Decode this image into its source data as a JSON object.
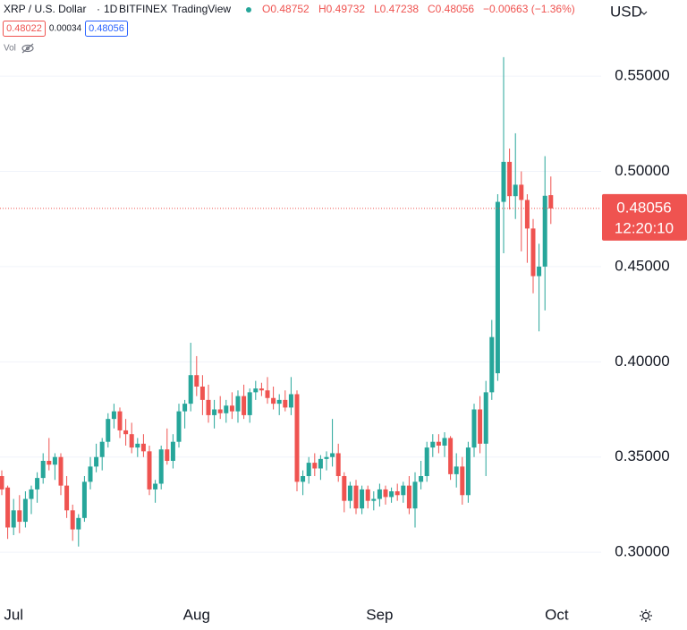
{
  "header": {
    "symbol": "XRP / U.S. Dollar",
    "interval": "1D",
    "exchange": "BITFINEX",
    "source": "TradingView",
    "ohlc": [
      "O0.48752",
      "H0.49732",
      "L0.47238",
      "C0.48056",
      "−0.00663 (−1.36%)"
    ],
    "bid": "0.48022",
    "spread": "0.00034",
    "ask": "0.48056",
    "volume_label": "Vol"
  },
  "chart_data": {
    "type": "candlestick",
    "currency": "USD",
    "categories": [
      null,
      null,
      "Jul",
      null,
      null,
      null,
      null,
      null,
      null,
      null,
      null,
      null,
      null,
      null,
      null,
      null,
      null,
      null,
      null,
      null,
      null,
      null,
      null,
      null,
      null,
      null,
      null,
      null,
      null,
      null,
      null,
      null,
      null,
      "Aug",
      null,
      null,
      null,
      null,
      null,
      null,
      null,
      null,
      null,
      null,
      null,
      null,
      null,
      null,
      null,
      null,
      null,
      null,
      null,
      null,
      null,
      null,
      null,
      null,
      null,
      null,
      null,
      null,
      null,
      null,
      "Sep",
      null,
      null,
      null,
      null,
      null,
      null,
      null,
      null,
      null,
      null,
      null,
      null,
      null,
      null,
      null,
      null,
      null,
      null,
      null,
      null,
      null,
      null,
      null,
      null,
      null,
      null,
      null,
      null,
      null,
      "Oct"
    ],
    "open": [
      0.34,
      0.334,
      0.313,
      0.322,
      0.316,
      0.328,
      0.333,
      0.339,
      0.348,
      0.346,
      0.35,
      0.335,
      0.322,
      0.312,
      0.318,
      0.337,
      0.345,
      0.35,
      0.358,
      0.37,
      0.374,
      0.364,
      0.362,
      0.355,
      0.357,
      0.353,
      0.333,
      0.336,
      0.354,
      0.348,
      0.358,
      0.374,
      0.378,
      0.393,
      0.387,
      0.38,
      0.372,
      0.375,
      0.373,
      0.377,
      0.374,
      0.382,
      0.372,
      0.384,
      0.386,
      0.385,
      0.381,
      0.378,
      0.38,
      0.376,
      0.383,
      0.337,
      0.34,
      0.347,
      0.344,
      0.349,
      0.35,
      0.352,
      0.34,
      0.327,
      0.335,
      0.323,
      0.333,
      0.327,
      0.328,
      0.333,
      0.329,
      0.332,
      0.33,
      0.335,
      0.323,
      0.337,
      0.34,
      0.355,
      0.358,
      0.356,
      0.36,
      0.341,
      0.345,
      0.33,
      0.355,
      0.375,
      0.357,
      0.384,
      0.394,
      0.484,
      0.505,
      0.487,
      0.493,
      0.485,
      0.47,
      0.445,
      0.45,
      0.48752,
      null
    ],
    "high": [
      0.343,
      0.335,
      0.328,
      0.33,
      0.332,
      0.335,
      0.342,
      0.352,
      0.36,
      0.352,
      0.352,
      0.34,
      0.325,
      0.32,
      0.34,
      0.35,
      0.357,
      0.36,
      0.373,
      0.378,
      0.376,
      0.37,
      0.368,
      0.36,
      0.362,
      0.356,
      0.338,
      0.356,
      0.365,
      0.362,
      0.378,
      0.38,
      0.41,
      0.403,
      0.393,
      0.388,
      0.38,
      0.382,
      0.38,
      0.384,
      0.385,
      0.388,
      0.386,
      0.39,
      0.389,
      0.392,
      0.387,
      0.383,
      0.385,
      0.392,
      0.385,
      0.343,
      0.35,
      0.352,
      0.351,
      0.353,
      0.37,
      0.357,
      0.342,
      0.337,
      0.338,
      0.335,
      0.335,
      0.332,
      0.336,
      0.335,
      0.334,
      0.336,
      0.337,
      0.34,
      0.342,
      0.348,
      0.358,
      0.362,
      0.362,
      0.363,
      0.361,
      0.352,
      0.35,
      0.358,
      0.378,
      0.382,
      0.39,
      0.422,
      0.488,
      0.56,
      0.512,
      0.52,
      0.5,
      0.488,
      0.475,
      0.462,
      0.508,
      0.49732,
      null
    ],
    "low": [
      0.33,
      0.307,
      0.309,
      0.31,
      0.313,
      0.32,
      0.326,
      0.336,
      0.343,
      0.338,
      0.33,
      0.318,
      0.306,
      0.303,
      0.316,
      0.333,
      0.342,
      0.343,
      0.355,
      0.365,
      0.36,
      0.356,
      0.352,
      0.35,
      0.35,
      0.33,
      0.326,
      0.333,
      0.346,
      0.344,
      0.355,
      0.365,
      0.374,
      0.382,
      0.372,
      0.368,
      0.365,
      0.37,
      0.368,
      0.37,
      0.368,
      0.37,
      0.368,
      0.38,
      0.382,
      0.378,
      0.375,
      0.372,
      0.374,
      0.372,
      0.332,
      0.33,
      0.336,
      0.34,
      0.338,
      0.343,
      0.345,
      0.337,
      0.321,
      0.323,
      0.32,
      0.32,
      0.323,
      0.322,
      0.324,
      0.325,
      0.326,
      0.327,
      0.326,
      0.32,
      0.313,
      0.333,
      0.337,
      0.35,
      0.352,
      0.35,
      0.338,
      0.334,
      0.325,
      0.326,
      0.35,
      0.352,
      0.34,
      0.38,
      0.39,
      0.457,
      0.48,
      0.475,
      0.458,
      0.452,
      0.436,
      0.416,
      0.427,
      0.47238,
      null
    ],
    "close": [
      0.333,
      0.313,
      0.322,
      0.316,
      0.328,
      0.333,
      0.339,
      0.348,
      0.346,
      0.35,
      0.335,
      0.322,
      0.312,
      0.318,
      0.337,
      0.345,
      0.35,
      0.358,
      0.37,
      0.374,
      0.364,
      0.362,
      0.355,
      0.357,
      0.353,
      0.333,
      0.336,
      0.354,
      0.348,
      0.358,
      0.374,
      0.378,
      0.393,
      0.387,
      0.38,
      0.372,
      0.375,
      0.373,
      0.377,
      0.374,
      0.382,
      0.372,
      0.384,
      0.386,
      0.385,
      0.381,
      0.378,
      0.38,
      0.376,
      0.383,
      0.337,
      0.34,
      0.347,
      0.344,
      0.349,
      0.35,
      0.352,
      0.34,
      0.327,
      0.335,
      0.323,
      0.333,
      0.327,
      0.328,
      0.333,
      0.329,
      0.332,
      0.33,
      0.335,
      0.323,
      0.337,
      0.34,
      0.355,
      0.358,
      0.356,
      0.36,
      0.341,
      0.345,
      0.33,
      0.355,
      0.375,
      0.357,
      0.384,
      0.413,
      0.484,
      0.505,
      0.487,
      0.493,
      0.485,
      0.47,
      0.445,
      0.45,
      0.48719,
      0.48056,
      null
    ],
    "up_color": "#26a69a",
    "down_color": "#ef5350",
    "ylim": [
      0.2775,
      0.59
    ],
    "yticks": [
      {
        "value": 0.3,
        "label": "0.30000"
      },
      {
        "value": 0.35,
        "label": "0.35000"
      },
      {
        "value": 0.4,
        "label": "0.40000"
      },
      {
        "value": 0.45,
        "label": "0.45000"
      },
      {
        "value": 0.5,
        "label": "0.50000"
      },
      {
        "value": 0.55,
        "label": "0.55000"
      }
    ],
    "grid": true,
    "current_price": 0.48056,
    "countdown": "12:20:10"
  }
}
